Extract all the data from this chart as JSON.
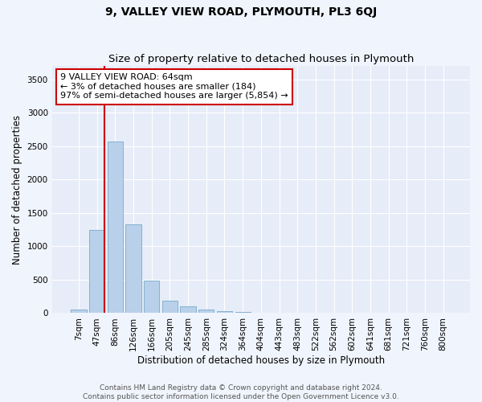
{
  "title": "9, VALLEY VIEW ROAD, PLYMOUTH, PL3 6QJ",
  "subtitle": "Size of property relative to detached houses in Plymouth",
  "xlabel": "Distribution of detached houses by size in Plymouth",
  "ylabel": "Number of detached properties",
  "bar_labels": [
    "7sqm",
    "47sqm",
    "86sqm",
    "126sqm",
    "166sqm",
    "205sqm",
    "245sqm",
    "285sqm",
    "324sqm",
    "364sqm",
    "404sqm",
    "443sqm",
    "483sqm",
    "522sqm",
    "562sqm",
    "602sqm",
    "641sqm",
    "681sqm",
    "721sqm",
    "760sqm",
    "800sqm"
  ],
  "bar_values": [
    50,
    1250,
    2575,
    1330,
    490,
    185,
    105,
    55,
    30,
    15,
    8,
    5,
    3,
    2,
    1,
    1,
    0,
    0,
    0,
    0,
    0
  ],
  "bar_color": "#b8d0ea",
  "bar_edge_color": "#7aaac8",
  "bar_width": 0.85,
  "vline_color": "#cc0000",
  "vline_x_index": 1.43,
  "annotation_line1": "9 VALLEY VIEW ROAD: 64sqm",
  "annotation_line2": "← 3% of detached houses are smaller (184)",
  "annotation_line3": "97% of semi-detached houses are larger (5,854) →",
  "ylim": [
    0,
    3700
  ],
  "yticks": [
    0,
    500,
    1000,
    1500,
    2000,
    2500,
    3000,
    3500
  ],
  "bg_color": "#f0f4fc",
  "plot_bg_color": "#e6ecf8",
  "grid_color": "#ffffff",
  "footer_line1": "Contains HM Land Registry data © Crown copyright and database right 2024.",
  "footer_line2": "Contains public sector information licensed under the Open Government Licence v3.0.",
  "title_fontsize": 10,
  "subtitle_fontsize": 9.5,
  "axis_label_fontsize": 8.5,
  "tick_fontsize": 7.5,
  "annotation_fontsize": 8,
  "footer_fontsize": 6.5
}
